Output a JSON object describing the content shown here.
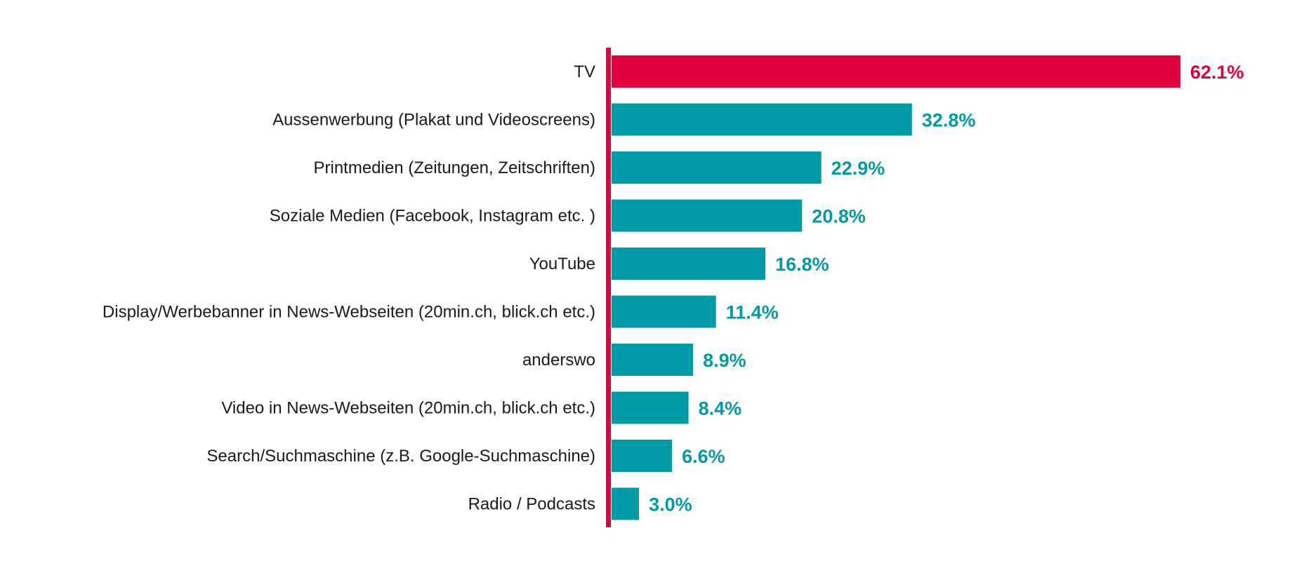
{
  "chart_data": {
    "type": "bar",
    "orientation": "horizontal",
    "categories": [
      "TV",
      "Aussenwerbung (Plakat und Videoscreens)",
      "Printmedien (Zeitungen, Zeitschriften)",
      "Soziale Medien (Facebook, Instagram etc. )",
      "YouTube",
      "Display/Werbebanner in News-Webseiten (20min.ch, blick.ch etc.)",
      "anderswo",
      "Video in News-Webseiten (20min.ch, blick.ch etc.)",
      "Search/Suchmaschine (z.B. Google-Suchmaschine)",
      "Radio / Podcasts"
    ],
    "values": [
      62.1,
      32.8,
      22.9,
      20.8,
      16.8,
      11.4,
      8.9,
      8.4,
      6.6,
      3.0
    ],
    "value_labels": [
      "62.1%",
      "32.8%",
      "22.9%",
      "20.8%",
      "16.8%",
      "11.4%",
      "8.9%",
      "8.4%",
      "6.6%",
      "3.0%"
    ],
    "unit": "%",
    "xlim": [
      0,
      62.1
    ],
    "grid": false,
    "highlight_index": 0,
    "colors": {
      "highlight": "#e4003f",
      "default": "#009ba6",
      "axis": "#e4003f"
    }
  }
}
